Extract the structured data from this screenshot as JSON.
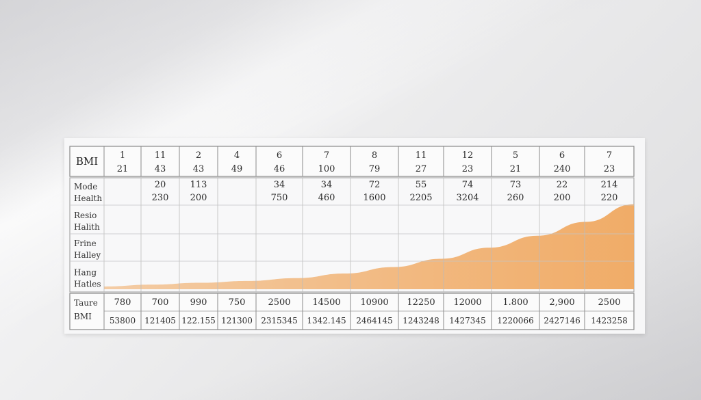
{
  "chart_data": {
    "type": "table",
    "header_label": "BMI",
    "header_row1": [
      "1",
      "11",
      "2",
      "4",
      "6",
      "7",
      "8",
      "11",
      "12",
      "5",
      "6",
      "7"
    ],
    "header_row2": [
      "21",
      "43",
      "43",
      "49",
      "46",
      "100",
      "79",
      "27",
      "23",
      "21",
      "240",
      "23"
    ],
    "row_labels": [
      [
        "Mode",
        "Health"
      ],
      [
        "Resio",
        "Halith"
      ],
      [
        "Frine",
        "Halley"
      ],
      [
        "Hang",
        "Hatles"
      ]
    ],
    "mode_row1": [
      "",
      "20",
      "113",
      "",
      "34",
      "34",
      "72",
      "55",
      "74",
      "73",
      "22",
      "214"
    ],
    "mode_row2": [
      "",
      "230",
      "200",
      "",
      "750",
      "460",
      "1600",
      "2205",
      "3204",
      "260",
      "200",
      "220"
    ],
    "footer_labels": [
      "Taure",
      "BMI"
    ],
    "footer_row1": [
      "780",
      "700",
      "990",
      "750",
      "2500",
      "14500",
      "10900",
      "12250",
      "12000",
      "1.800",
      "2,900",
      "2500"
    ],
    "footer_row2": [
      "53800",
      "121405",
      "122.155",
      "121300",
      "2315345",
      "1342.145",
      "2464145",
      "1243248",
      "1427345",
      "1220066",
      "2427146",
      "1423258"
    ],
    "area_series": {
      "shape": "exponential-rise",
      "values": [
        0.03,
        0.05,
        0.07,
        0.09,
        0.12,
        0.17,
        0.24,
        0.33,
        0.45,
        0.58,
        0.73,
        0.92
      ]
    },
    "colors": {
      "area_fill": "#f0a860",
      "grid": "#9a9a9a",
      "board": "#f7f7f8"
    }
  }
}
